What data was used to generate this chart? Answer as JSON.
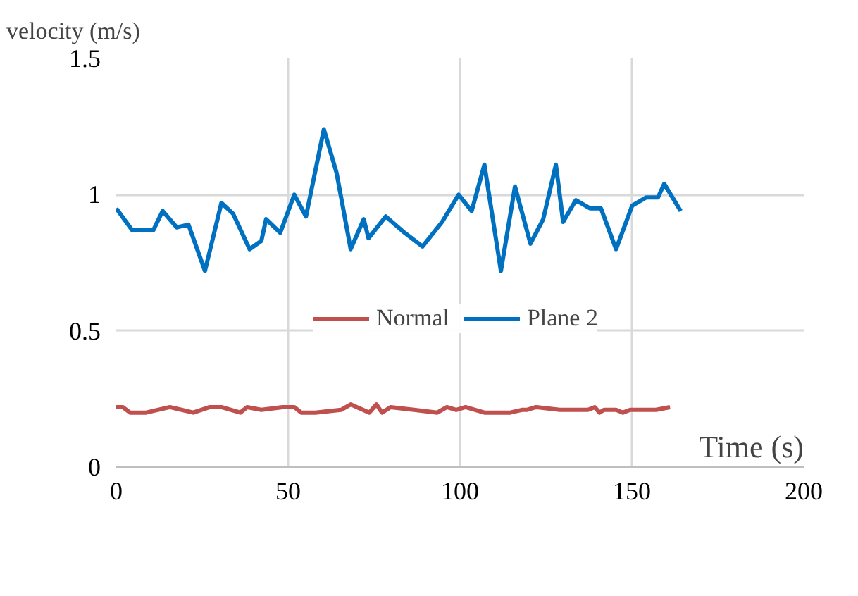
{
  "chart_data": {
    "type": "line",
    "xlabel": "Time (s)",
    "ylabel": "velocity (m/s)",
    "xlim": [
      0,
      200
    ],
    "xticks": [
      0,
      50,
      100,
      150,
      200
    ],
    "ylim": [
      0,
      1.5
    ],
    "yticks": [
      0,
      0.5,
      1,
      1.5
    ],
    "grid": true,
    "legend": "bottom",
    "line_style": "solid",
    "series": [
      {
        "name": "Normal",
        "color": "#c0504d",
        "x": [
          0,
          1.9,
          4.0,
          8.7,
          15.6,
          22.4,
          27.2,
          30.6,
          36.1,
          38.1,
          42.2,
          48.4,
          51.8,
          53.8,
          57.9,
          65.4,
          68.2,
          73.6,
          75.7,
          77.3,
          79.8,
          86.6,
          93.4,
          96.2,
          98.9,
          101.6,
          107.1,
          114.6,
          118.0,
          119.4,
          122.1,
          129.0,
          137.2,
          139.2,
          140.6,
          141.9,
          145.4,
          147.4,
          149.5,
          157.0,
          161.1
        ],
        "values": [
          0.22,
          0.22,
          0.2,
          0.2,
          0.22,
          0.2,
          0.22,
          0.22,
          0.2,
          0.22,
          0.21,
          0.22,
          0.22,
          0.2,
          0.2,
          0.21,
          0.23,
          0.2,
          0.23,
          0.2,
          0.22,
          0.21,
          0.2,
          0.22,
          0.21,
          0.22,
          0.2,
          0.2,
          0.21,
          0.21,
          0.22,
          0.21,
          0.21,
          0.22,
          0.2,
          0.21,
          0.21,
          0.2,
          0.21,
          0.21,
          0.22
        ]
      },
      {
        "name": "Plane 2",
        "color": "#0070c0",
        "x": [
          0,
          4.6,
          10.8,
          13.5,
          17.6,
          21,
          25.8,
          30.6,
          34,
          38.8,
          42.2,
          43.6,
          47.7,
          51.8,
          55.2,
          60.4,
          64.1,
          68.2,
          72,
          73.4,
          78.4,
          83.9,
          89.1,
          94.8,
          99.6,
          103.4,
          107.1,
          111.9,
          116,
          120.5,
          124.2,
          127.9,
          130,
          133.7,
          137.8,
          141,
          145.4,
          150.1,
          154.2,
          157.6,
          159.4,
          164.2
        ],
        "values": [
          0.95,
          0.87,
          0.87,
          0.94,
          0.88,
          0.89,
          0.72,
          0.97,
          0.93,
          0.8,
          0.83,
          0.91,
          0.86,
          1.0,
          0.92,
          1.24,
          1.08,
          0.8,
          0.91,
          0.84,
          0.92,
          0.86,
          0.81,
          0.9,
          1.0,
          0.94,
          1.11,
          0.72,
          1.03,
          0.82,
          0.91,
          1.11,
          0.9,
          0.98,
          0.95,
          0.95,
          0.8,
          0.96,
          0.99,
          0.99,
          1.04,
          0.94
        ]
      }
    ]
  }
}
